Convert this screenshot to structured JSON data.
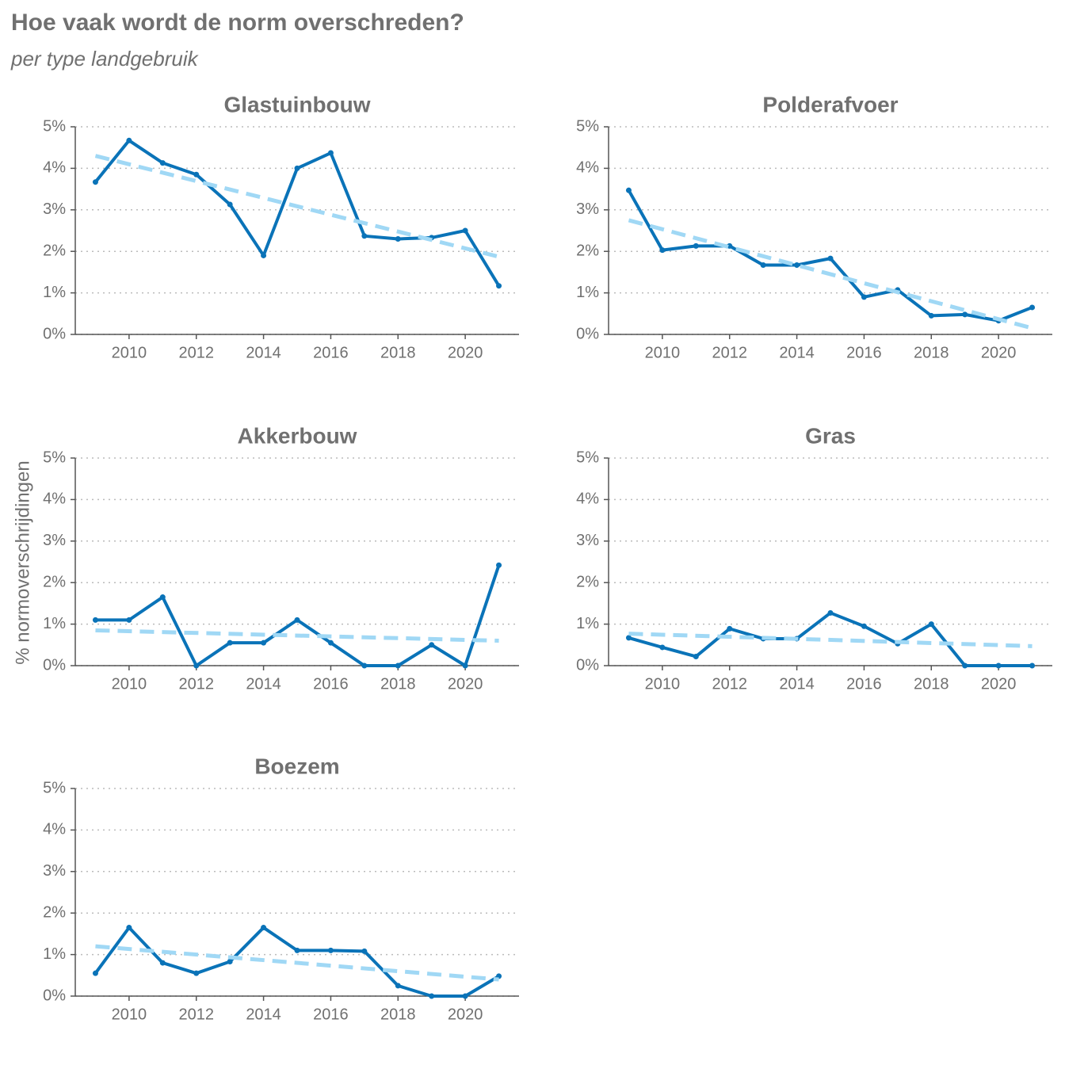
{
  "title": "Hoe vaak wordt de norm overschreden?",
  "subtitle": "per type landgebruik",
  "y_label": "% normoverschrijdingen",
  "chart_data": [
    {
      "type": "line",
      "title": "Glastuinbouw",
      "x": [
        2009,
        2010,
        2011,
        2012,
        2013,
        2014,
        2015,
        2016,
        2017,
        2018,
        2019,
        2020,
        2021
      ],
      "series": [
        {
          "color": "#0a73b8",
          "values": [
            3.67,
            4.67,
            4.13,
            3.85,
            3.13,
            1.9,
            4.0,
            4.37,
            2.37,
            2.3,
            2.33,
            2.5,
            1.17
          ]
        },
        {
          "color": "#a0d8f5",
          "dashed": true,
          "x": [
            2009,
            2021
          ],
          "values": [
            4.3,
            1.87
          ]
        }
      ],
      "xlim": [
        2008.4,
        2021.6
      ],
      "xticks": [
        2010,
        2012,
        2014,
        2016,
        2018,
        2020
      ],
      "ylim": [
        0,
        5
      ],
      "yticks": [
        {
          "value": 0,
          "label": "0%"
        },
        {
          "value": 1,
          "label": "1%"
        },
        {
          "value": 2,
          "label": "2%"
        },
        {
          "value": 3,
          "label": "3%"
        },
        {
          "value": 4,
          "label": "4%"
        },
        {
          "value": 5,
          "label": "5%"
        }
      ],
      "grid": true
    },
    {
      "type": "line",
      "title": "Polderafvoer",
      "x": [
        2009,
        2010,
        2011,
        2012,
        2013,
        2014,
        2015,
        2016,
        2017,
        2018,
        2019,
        2020,
        2021
      ],
      "series": [
        {
          "color": "#0a73b8",
          "values": [
            3.47,
            2.03,
            2.13,
            2.13,
            1.67,
            1.67,
            1.83,
            0.9,
            1.07,
            0.45,
            0.48,
            0.33,
            0.65
          ]
        },
        {
          "color": "#a0d8f5",
          "dashed": true,
          "x": [
            2009,
            2021
          ],
          "values": [
            2.75,
            0.15
          ]
        }
      ],
      "xlim": [
        2008.4,
        2021.6
      ],
      "xticks": [
        2010,
        2012,
        2014,
        2016,
        2018,
        2020
      ],
      "ylim": [
        0,
        5
      ],
      "yticks": [
        {
          "value": 0,
          "label": "0%"
        },
        {
          "value": 1,
          "label": "1%"
        },
        {
          "value": 2,
          "label": "2%"
        },
        {
          "value": 3,
          "label": "3%"
        },
        {
          "value": 4,
          "label": "4%"
        },
        {
          "value": 5,
          "label": "5%"
        }
      ],
      "grid": true
    },
    {
      "type": "line",
      "title": "Akkerbouw",
      "x": [
        2009,
        2010,
        2011,
        2012,
        2013,
        2014,
        2015,
        2016,
        2017,
        2018,
        2019,
        2020,
        2021
      ],
      "series": [
        {
          "color": "#0a73b8",
          "values": [
            1.1,
            1.1,
            1.65,
            0,
            0.55,
            0.55,
            1.1,
            0.55,
            0,
            0,
            0.5,
            0,
            2.42
          ]
        },
        {
          "color": "#a0d8f5",
          "dashed": true,
          "x": [
            2009,
            2021
          ],
          "values": [
            0.85,
            0.6
          ]
        }
      ],
      "xlim": [
        2008.4,
        2021.6
      ],
      "xticks": [
        2010,
        2012,
        2014,
        2016,
        2018,
        2020
      ],
      "ylim": [
        0,
        5
      ],
      "yticks": [
        {
          "value": 0,
          "label": "0%"
        },
        {
          "value": 1,
          "label": "1%"
        },
        {
          "value": 2,
          "label": "2%"
        },
        {
          "value": 3,
          "label": "3%"
        },
        {
          "value": 4,
          "label": "4%"
        },
        {
          "value": 5,
          "label": "5%"
        }
      ],
      "grid": true
    },
    {
      "type": "line",
      "title": "Gras",
      "x": [
        2009,
        2010,
        2011,
        2012,
        2013,
        2014,
        2015,
        2016,
        2017,
        2018,
        2019,
        2020,
        2021
      ],
      "series": [
        {
          "color": "#0a73b8",
          "values": [
            0.67,
            0.44,
            0.22,
            0.89,
            0.65,
            0.65,
            1.27,
            0.95,
            0.53,
            1.0,
            0,
            0,
            0
          ]
        },
        {
          "color": "#a0d8f5",
          "dashed": true,
          "x": [
            2009,
            2021
          ],
          "values": [
            0.77,
            0.47
          ]
        }
      ],
      "xlim": [
        2008.4,
        2021.6
      ],
      "xticks": [
        2010,
        2012,
        2014,
        2016,
        2018,
        2020
      ],
      "ylim": [
        0,
        5
      ],
      "yticks": [
        {
          "value": 0,
          "label": "0%"
        },
        {
          "value": 1,
          "label": "1%"
        },
        {
          "value": 2,
          "label": "2%"
        },
        {
          "value": 3,
          "label": "3%"
        },
        {
          "value": 4,
          "label": "4%"
        },
        {
          "value": 5,
          "label": "5%"
        }
      ],
      "grid": true
    },
    {
      "type": "line",
      "title": "Boezem",
      "x": [
        2009,
        2010,
        2011,
        2012,
        2013,
        2014,
        2015,
        2016,
        2017,
        2018,
        2019,
        2020,
        2021
      ],
      "series": [
        {
          "color": "#0a73b8",
          "values": [
            0.55,
            1.65,
            0.8,
            0.55,
            0.83,
            1.65,
            1.1,
            1.1,
            1.08,
            0.25,
            0,
            0,
            0.48
          ]
        },
        {
          "color": "#a0d8f5",
          "dashed": true,
          "x": [
            2009,
            2021
          ],
          "values": [
            1.2,
            0.4
          ]
        }
      ],
      "xlim": [
        2008.4,
        2021.6
      ],
      "xticks": [
        2010,
        2012,
        2014,
        2016,
        2018,
        2020
      ],
      "ylim": [
        0,
        5
      ],
      "yticks": [
        {
          "value": 0,
          "label": "0%"
        },
        {
          "value": 1,
          "label": "1%"
        },
        {
          "value": 2,
          "label": "2%"
        },
        {
          "value": 3,
          "label": "3%"
        },
        {
          "value": 4,
          "label": "4%"
        },
        {
          "value": 5,
          "label": "5%"
        }
      ],
      "grid": true
    }
  ]
}
